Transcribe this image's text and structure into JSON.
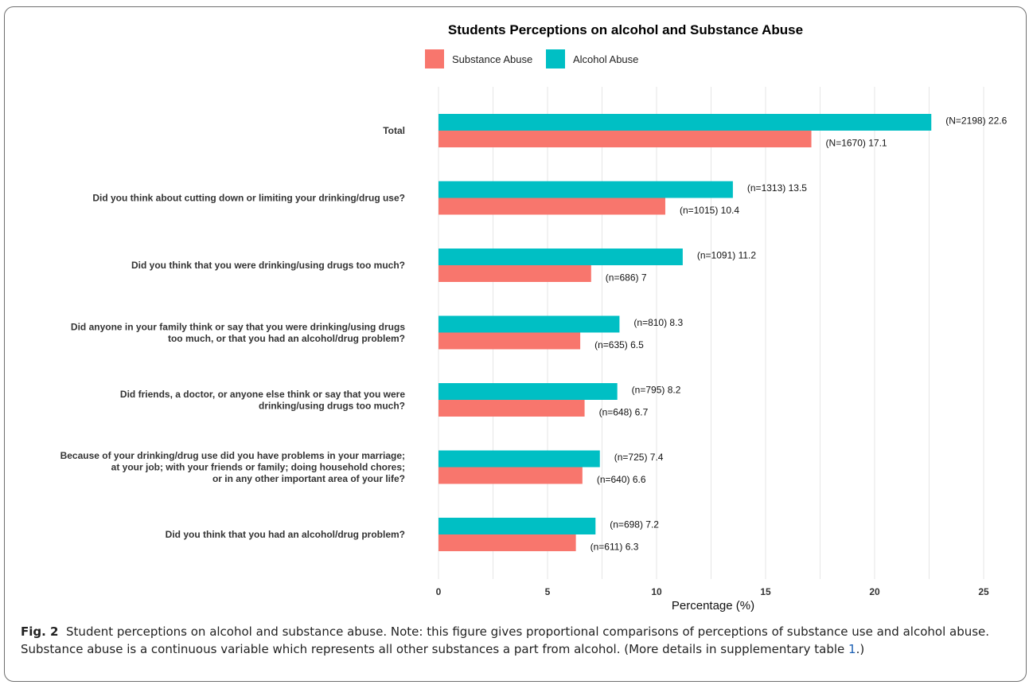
{
  "chart_data": {
    "type": "bar",
    "orientation": "horizontal",
    "title": "Students Perceptions on alcohol and Substance Abuse",
    "xlabel": "Percentage (%)",
    "ylabel": "",
    "xlim": [
      0,
      26
    ],
    "xticks": [
      0,
      5,
      10,
      15,
      20,
      25
    ],
    "grid": true,
    "legend_position": "top",
    "categories": [
      [
        "Total"
      ],
      [
        "Did you think about cutting down or limiting your drinking/drug use?"
      ],
      [
        "Did you think that you were drinking/using drugs too much?"
      ],
      [
        "Did anyone in your family think or say that you were drinking/using drugs",
        "too much, or that you had an alcohol/drug problem?"
      ],
      [
        "Did friends, a doctor, or anyone else think or say that you were",
        "drinking/using drugs too much?"
      ],
      [
        "Because of your drinking/drug use did you have problems in your marriage;",
        "at your job; with your friends or family; doing household chores;",
        "or in any other important area of your life?"
      ],
      [
        "Did you think that you had an alcohol/drug problem?"
      ]
    ],
    "series": [
      {
        "name": "Alcohol Abuse",
        "color": "#00BFC4",
        "values": [
          22.6,
          13.5,
          11.2,
          8.3,
          8.2,
          7.4,
          7.2
        ],
        "labels": [
          "(N=2198) 22.6",
          "(n=1313) 13.5",
          "(n=1091) 11.2",
          "(n=810) 8.3",
          "(n=795) 8.2",
          "(n=725) 7.4",
          "(n=698) 7.2"
        ]
      },
      {
        "name": "Substance Abuse",
        "color": "#F8766D",
        "values": [
          17.1,
          10.4,
          7,
          6.5,
          6.7,
          6.6,
          6.3
        ],
        "labels": [
          "(N=1670) 17.1",
          "(n=1015) 10.4",
          "(n=686) 7",
          "(n=635) 6.5",
          "(n=648) 6.7",
          "(n=640) 6.6",
          "(n=611) 6.3"
        ]
      }
    ],
    "legend_order": [
      "Substance Abuse",
      "Alcohol Abuse"
    ]
  },
  "caption": {
    "figure_number": "Fig. 2",
    "text_before_ref": "Student perceptions on alcohol and substance abuse. Note: this figure gives proportional comparisons of perceptions of substance use and alcohol abuse. Substance abuse is a continuous variable which represents all other substances a part from alcohol. (More details in supplementary table ",
    "ref": "1",
    "text_after_ref": ".)"
  }
}
